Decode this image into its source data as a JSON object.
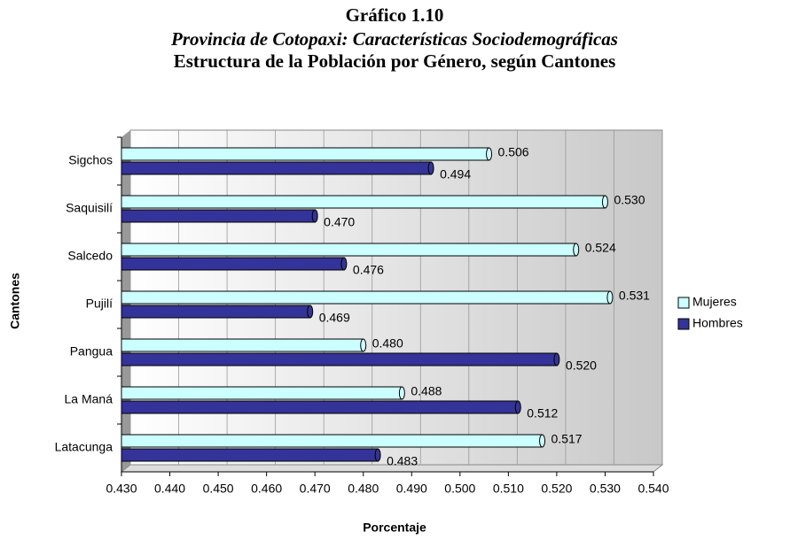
{
  "chart_data": {
    "type": "bar",
    "orientation": "horizontal",
    "title": "Gráfico 1.10",
    "subtitle": "Provincia de Cotopaxi: Características Sociodemográficas",
    "chart_title": "Estructura de la Población por Género, según Cantones",
    "x_label": "Porcentaje",
    "y_label": "Cantones",
    "categories": [
      "Sigchos",
      "Saquisilí",
      "Salcedo",
      "Pujilí",
      "Pangua",
      "La Maná",
      "Latacunga"
    ],
    "series": [
      {
        "name": "Mujeres",
        "color": "#ccffff",
        "values": [
          0.506,
          0.53,
          0.524,
          0.531,
          0.48,
          0.488,
          0.517
        ],
        "value_labels": [
          "0.506",
          "0.530",
          "0.524",
          "0.531",
          "0.480",
          "0.488",
          "0.517"
        ]
      },
      {
        "name": "Hombres",
        "color": "#333399",
        "values": [
          0.494,
          0.47,
          0.476,
          0.469,
          0.52,
          0.512,
          0.483
        ],
        "value_labels": [
          "0.494",
          "0.470",
          "0.476",
          "0.469",
          "0.520",
          "0.512",
          "0.483"
        ]
      }
    ],
    "xlim": [
      0.43,
      0.54
    ],
    "xticks": [
      {
        "value": 0.43,
        "label": "0.430"
      },
      {
        "value": 0.44,
        "label": "0.440"
      },
      {
        "value": 0.45,
        "label": "0.450"
      },
      {
        "value": 0.46,
        "label": "0.460"
      },
      {
        "value": 0.47,
        "label": "0.470"
      },
      {
        "value": 0.48,
        "label": "0.480"
      },
      {
        "value": 0.49,
        "label": "0.490"
      },
      {
        "value": 0.5,
        "label": "0.500"
      },
      {
        "value": 0.51,
        "label": "0.510"
      },
      {
        "value": 0.52,
        "label": "0.520"
      },
      {
        "value": 0.53,
        "label": "0.530"
      },
      {
        "value": 0.54,
        "label": "0.540"
      }
    ],
    "grid": true,
    "legend": "right"
  }
}
